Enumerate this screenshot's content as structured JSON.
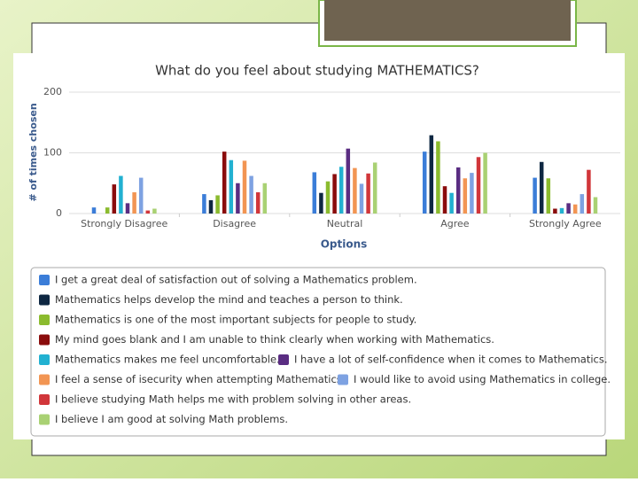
{
  "chart_data": {
    "type": "bar",
    "title": "What do you feel about studying MATHEMATICS?",
    "y_label": "# of times chosen",
    "x_label": "Options",
    "categories": [
      "Strongly Disagree",
      "Disagree",
      "Neutral",
      "Agree",
      "Strongly Agree"
    ],
    "ylim": [
      0,
      200
    ],
    "yticks": [
      0,
      100,
      200
    ],
    "grid": true,
    "series": [
      {
        "name": "I get a great deal of satisfaction out of solving a Mathematics problem.",
        "color": "#3b7dd8",
        "values": [
          10,
          32,
          68,
          102,
          59
        ]
      },
      {
        "name": "Mathematics helps develop the mind and teaches a person to think.",
        "color": "#0e2742",
        "values": [
          0,
          22,
          34,
          129,
          85
        ]
      },
      {
        "name": "Mathematics is one of the most important subjects for people to study.",
        "color": "#8bbb2e",
        "values": [
          10,
          30,
          53,
          119,
          58
        ]
      },
      {
        "name": "My mind goes blank and I am unable to think clearly when working with Mathematics.",
        "color": "#8a0c0c",
        "values": [
          48,
          102,
          65,
          45,
          8
        ]
      },
      {
        "name": "Mathematics makes me feel uncomfortable.",
        "color": "#22b1d1",
        "values": [
          62,
          88,
          77,
          34,
          9
        ]
      },
      {
        "name": "I have a lot of self-confidence when it comes to Mathematics.",
        "color": "#5a2d82",
        "values": [
          17,
          50,
          107,
          76,
          17
        ]
      },
      {
        "name": "I feel a sense of isecurity when attempting Mathematics.",
        "color": "#f29553",
        "values": [
          35,
          87,
          75,
          58,
          15
        ]
      },
      {
        "name": "I would like to avoid using Mathematics in college.",
        "color": "#7ea2e2",
        "values": [
          59,
          62,
          49,
          67,
          32
        ]
      },
      {
        "name": "I believe studying Math helps me with problem solving in other areas.",
        "color": "#d1363a",
        "values": [
          5,
          35,
          66,
          93,
          72
        ]
      },
      {
        "name": "I believe I am good at solving Math problems.",
        "color": "#a9d173",
        "values": [
          8,
          50,
          84,
          100,
          27
        ]
      }
    ]
  }
}
